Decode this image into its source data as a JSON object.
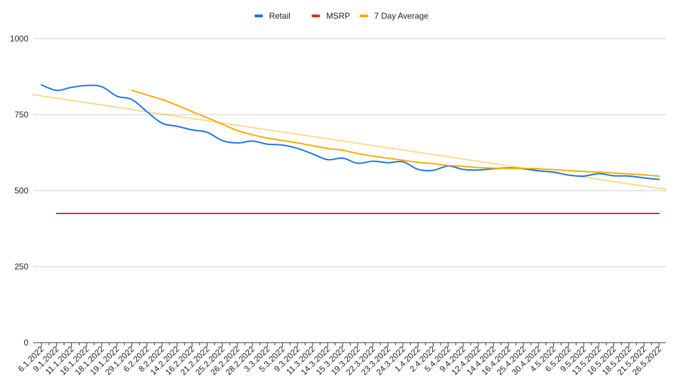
{
  "chart_data": {
    "type": "line",
    "title": "",
    "xlabel": "",
    "ylabel": "",
    "ylim": [
      0,
      1000
    ],
    "yticks": [
      0,
      250,
      500,
      750,
      1000
    ],
    "grid": true,
    "legend_position": "top",
    "categories": [
      "6.1.2022",
      "9.1.2022",
      "11.1.2022",
      "16.1.2022",
      "18.1.2022",
      "19.1.2022",
      "29.1.2022",
      "6.2.2022",
      "8.2.2022",
      "14.2.2022",
      "16.2.2022",
      "21.2.2022",
      "25.2.2022",
      "26.2.2022",
      "28.2.2022",
      "3.3.2022",
      "5.3.2022",
      "9.3.2022",
      "11.3.2022",
      "14.3.2022",
      "15.3.2022",
      "19.3.2022",
      "22.3.2022",
      "23.3.2022",
      "24.3.2022",
      "1.4.2022",
      "2.4.2022",
      "5.4.2022",
      "9.4.2022",
      "12.4.2022",
      "14.4.2022",
      "16.4.2022",
      "25.4.2022",
      "30.4.2022",
      "4.5.2022",
      "6.5.2022",
      "9.5.2022",
      "13.5.2022",
      "16.5.2022",
      "18.5.2022",
      "21.5.2022",
      "26.5.2022"
    ],
    "series": [
      {
        "name": "Retail",
        "color": "#1a73e8",
        "x": [
          0,
          1,
          2,
          3,
          4,
          5,
          6,
          7,
          8,
          9,
          10,
          11,
          12,
          13,
          14,
          15,
          16,
          17,
          18,
          19,
          20,
          21,
          22,
          23,
          24,
          25,
          26,
          27,
          28,
          29,
          30,
          31,
          32,
          33,
          34,
          35,
          36,
          37,
          38,
          39,
          40,
          41
        ],
        "values": [
          848,
          830,
          840,
          846,
          842,
          811,
          800,
          760,
          722,
          712,
          700,
          692,
          665,
          657,
          663,
          653,
          650,
          639,
          621,
          602,
          607,
          590,
          597,
          592,
          595,
          570,
          567,
          581,
          570,
          568,
          572,
          575,
          572,
          565,
          561,
          551,
          548,
          556,
          549,
          548,
          542,
          537
        ]
      },
      {
        "name": "MSRP",
        "color": "#d93025",
        "x": [
          1,
          41
        ],
        "values": [
          425,
          425
        ]
      },
      {
        "name": "7 Day Average",
        "color": "#f9ab00",
        "x": [
          6,
          7,
          8,
          9,
          10,
          11,
          12,
          13,
          14,
          15,
          16,
          17,
          18,
          19,
          20,
          21,
          22,
          23,
          24,
          25,
          26,
          27,
          28,
          29,
          30,
          31,
          32,
          33,
          34,
          35,
          36,
          37,
          38,
          39,
          40,
          41
        ],
        "values": [
          830,
          815,
          800,
          781,
          760,
          740,
          719,
          698,
          684,
          673,
          665,
          657,
          648,
          639,
          633,
          622,
          614,
          607,
          600,
          593,
          589,
          583,
          580,
          576,
          574,
          573,
          573,
          572,
          569,
          566,
          563,
          561,
          558,
          555,
          552,
          548
        ]
      }
    ],
    "trendline": {
      "series": "7 Day Average",
      "color": "#f9ab00",
      "x": [
        -0.6,
        41.5
      ],
      "values": [
        816,
        504
      ]
    }
  }
}
